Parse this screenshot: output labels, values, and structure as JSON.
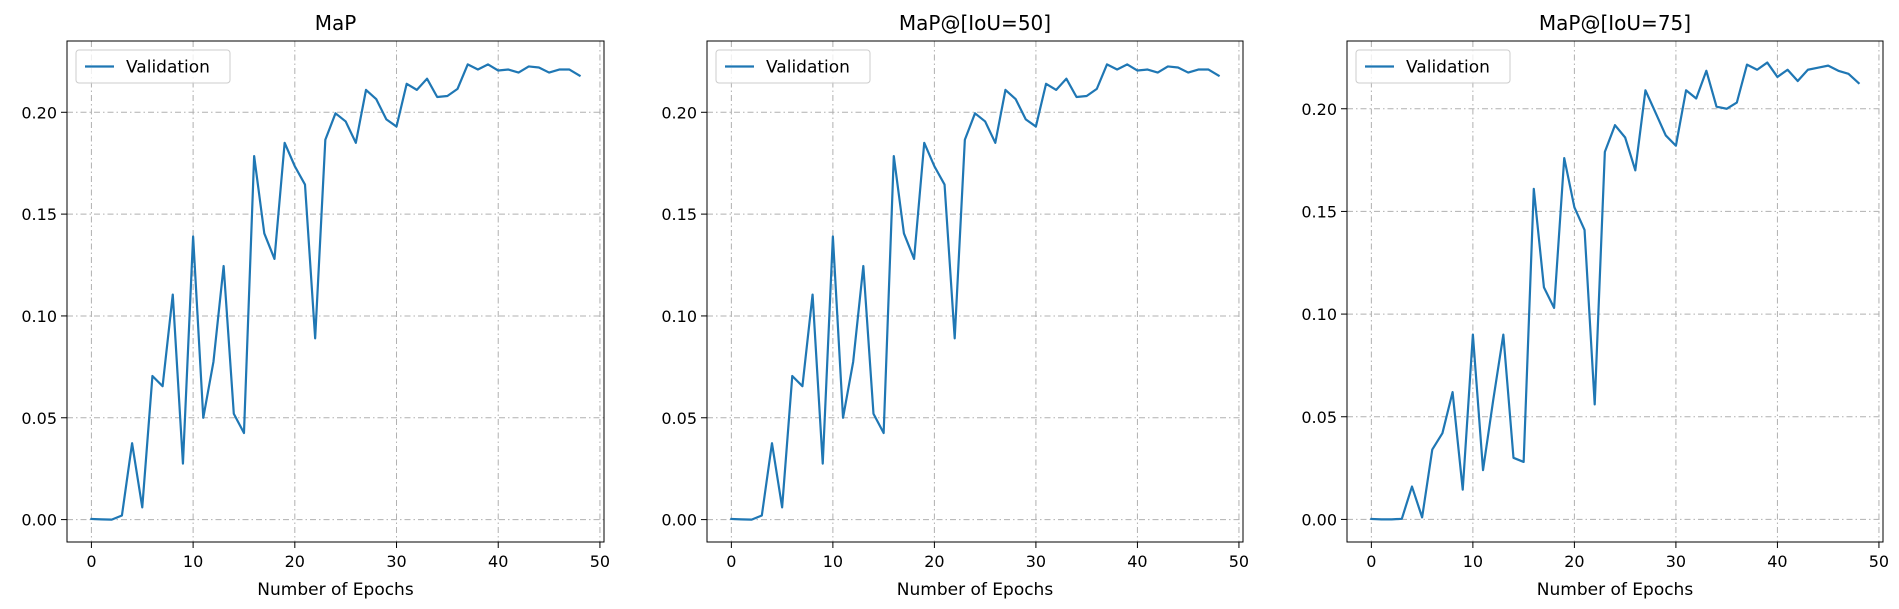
{
  "chart_data": [
    {
      "type": "line",
      "title": "MaP",
      "xlabel": "Number of Epochs",
      "ylabel": "",
      "xlim": [
        -2.4,
        50.4
      ],
      "ylim": [
        -0.011,
        0.235
      ],
      "xticks": [
        "0",
        "10",
        "20",
        "30",
        "40",
        "50"
      ],
      "yticks": [
        "0.00",
        "0.05",
        "0.10",
        "0.15",
        "0.20"
      ],
      "grid": true,
      "legend": "upper-left",
      "series": [
        {
          "name": "Validation",
          "color": "#1f77b4",
          "x": [
            0,
            1,
            2,
            3,
            4,
            5,
            6,
            7,
            8,
            9,
            10,
            11,
            12,
            13,
            14,
            15,
            16,
            17,
            18,
            19,
            20,
            21,
            22,
            23,
            24,
            25,
            26,
            27,
            28,
            29,
            30,
            31,
            32,
            33,
            34,
            35,
            36,
            37,
            38,
            39,
            40,
            41,
            42,
            43,
            44,
            45,
            46,
            47,
            48
          ],
          "y": [
            0.0003,
            0.0001,
            0.0,
            0.002,
            0.0375,
            0.006,
            0.0705,
            0.0655,
            0.1105,
            0.0275,
            0.139,
            0.05,
            0.0775,
            0.1245,
            0.052,
            0.0425,
            0.1785,
            0.1405,
            0.128,
            0.185,
            0.1735,
            0.1645,
            0.089,
            0.1865,
            0.1995,
            0.1955,
            0.185,
            0.211,
            0.2065,
            0.1965,
            0.193,
            0.214,
            0.211,
            0.2165,
            0.2075,
            0.208,
            0.2115,
            0.2235,
            0.221,
            0.2235,
            0.2205,
            0.221,
            0.2195,
            0.2225,
            0.222,
            0.2195,
            0.221,
            0.221,
            0.218
          ]
        }
      ]
    },
    {
      "type": "line",
      "title": "MaP@[IoU=50]",
      "xlabel": "Number of Epochs",
      "ylabel": "",
      "xlim": [
        -2.4,
        50.4
      ],
      "ylim": [
        -0.011,
        0.235
      ],
      "xticks": [
        "0",
        "10",
        "20",
        "30",
        "40",
        "50"
      ],
      "yticks": [
        "0.00",
        "0.05",
        "0.10",
        "0.15",
        "0.20"
      ],
      "grid": true,
      "legend": "upper-left",
      "series": [
        {
          "name": "Validation",
          "color": "#1f77b4",
          "x": [
            0,
            1,
            2,
            3,
            4,
            5,
            6,
            7,
            8,
            9,
            10,
            11,
            12,
            13,
            14,
            15,
            16,
            17,
            18,
            19,
            20,
            21,
            22,
            23,
            24,
            25,
            26,
            27,
            28,
            29,
            30,
            31,
            32,
            33,
            34,
            35,
            36,
            37,
            38,
            39,
            40,
            41,
            42,
            43,
            44,
            45,
            46,
            47,
            48
          ],
          "y": [
            0.0003,
            0.0001,
            0.0,
            0.002,
            0.0375,
            0.006,
            0.0705,
            0.0655,
            0.1105,
            0.0275,
            0.139,
            0.05,
            0.0775,
            0.1245,
            0.052,
            0.0425,
            0.1785,
            0.1405,
            0.128,
            0.185,
            0.1735,
            0.1645,
            0.089,
            0.1865,
            0.1995,
            0.1955,
            0.185,
            0.211,
            0.2065,
            0.1965,
            0.193,
            0.214,
            0.211,
            0.2165,
            0.2075,
            0.208,
            0.2115,
            0.2235,
            0.221,
            0.2235,
            0.2205,
            0.221,
            0.2195,
            0.2225,
            0.222,
            0.2195,
            0.221,
            0.221,
            0.218
          ]
        }
      ]
    },
    {
      "type": "line",
      "title": "MaP@[IoU=75]",
      "xlabel": "Number of Epochs",
      "ylabel": "",
      "xlim": [
        -2.4,
        50.4
      ],
      "ylim": [
        -0.011,
        0.233
      ],
      "xticks": [
        "0",
        "10",
        "20",
        "30",
        "40",
        "50"
      ],
      "yticks": [
        "0.00",
        "0.05",
        "0.10",
        "0.15",
        "0.20"
      ],
      "grid": true,
      "legend": "upper-left",
      "series": [
        {
          "name": "Validation",
          "color": "#1f77b4",
          "x": [
            0,
            1,
            2,
            3,
            4,
            5,
            6,
            7,
            8,
            9,
            10,
            11,
            12,
            13,
            14,
            15,
            16,
            17,
            18,
            19,
            20,
            21,
            22,
            23,
            24,
            25,
            26,
            27,
            28,
            29,
            30,
            31,
            32,
            33,
            34,
            35,
            36,
            37,
            38,
            39,
            40,
            41,
            42,
            43,
            44,
            45,
            46,
            47,
            48
          ],
          "y": [
            0.0002,
            0.0,
            0.0,
            0.0003,
            0.016,
            0.001,
            0.034,
            0.042,
            0.062,
            0.0145,
            0.09,
            0.024,
            0.058,
            0.09,
            0.03,
            0.028,
            0.161,
            0.113,
            0.103,
            0.176,
            0.152,
            0.141,
            0.056,
            0.179,
            0.192,
            0.186,
            0.17,
            0.209,
            0.198,
            0.187,
            0.182,
            0.209,
            0.205,
            0.2185,
            0.201,
            0.2,
            0.203,
            0.2215,
            0.219,
            0.2225,
            0.2155,
            0.219,
            0.2135,
            0.219,
            0.22,
            0.221,
            0.2185,
            0.217,
            0.2125
          ]
        }
      ]
    }
  ]
}
